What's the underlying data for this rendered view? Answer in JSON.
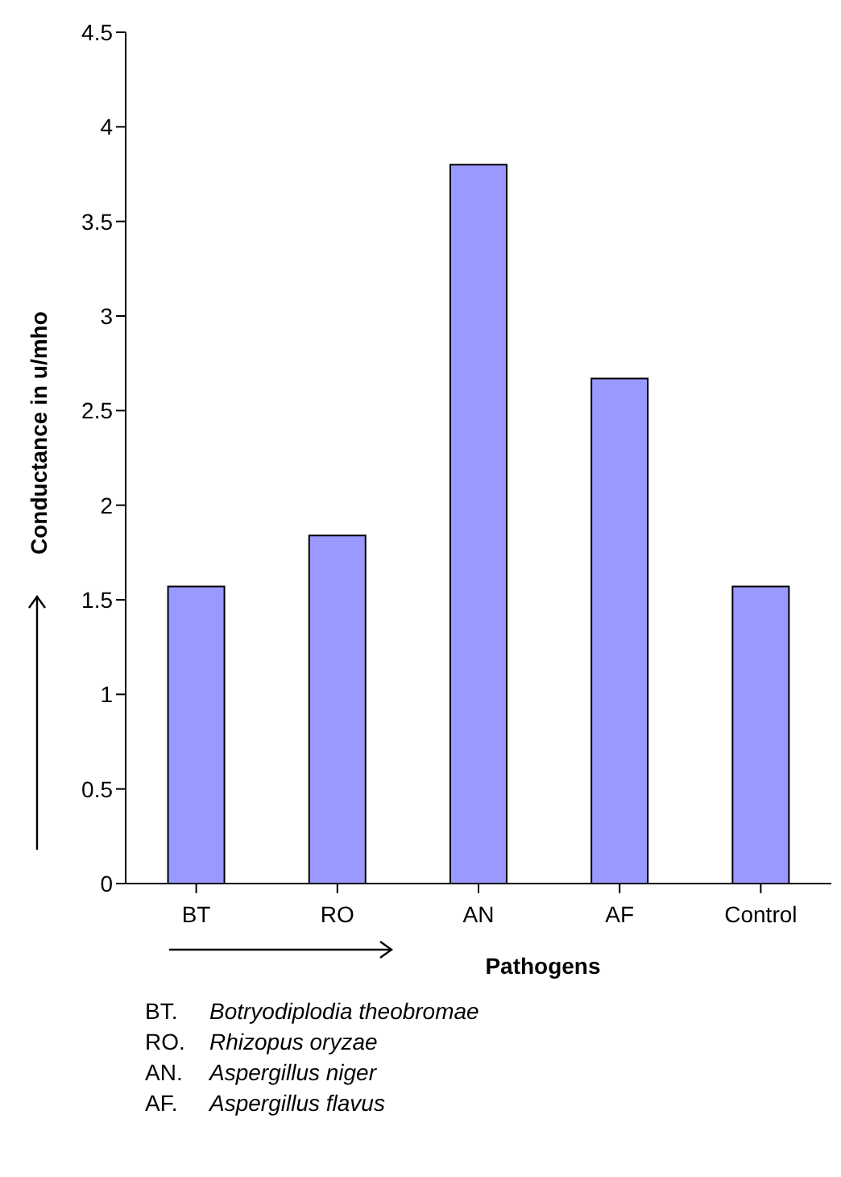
{
  "chart_data": {
    "type": "bar",
    "xlabel": "Pathogens",
    "ylabel": "Conductance in u/mho",
    "categories": [
      "BT",
      "RO",
      "AN",
      "AF",
      "Control"
    ],
    "values": [
      1.57,
      1.84,
      3.8,
      2.67,
      1.57
    ],
    "color": "#9999ff",
    "ylim": [
      0,
      4.5
    ],
    "yticks": [
      0,
      0.5,
      1,
      1.5,
      2,
      2.5,
      3,
      3.5,
      4,
      4.5
    ],
    "grid": false,
    "legend": false,
    "annotations": [
      "BT. Botryodiplodia theobromae",
      "RO. Rhizopus oryzae",
      "AN. Aspergillus niger",
      "AF. Aspergillus flavus"
    ]
  }
}
